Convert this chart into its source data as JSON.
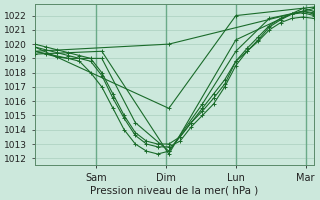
{
  "bg_color": "#cce8dc",
  "grid_color": "#aacfbe",
  "line_color": "#1a6b2a",
  "xlabel": "Pression niveau de la mer( hPa )",
  "ylim": [
    1011.5,
    1022.8
  ],
  "yticks": [
    1012,
    1013,
    1014,
    1015,
    1016,
    1017,
    1018,
    1019,
    1020,
    1021,
    1022
  ],
  "day_labels": [
    "Sam",
    "Dim",
    "Lun",
    "Mar"
  ],
  "day_positions": [
    0.22,
    0.47,
    0.72,
    0.97
  ],
  "xlim": [
    0.0,
    1.0
  ],
  "vline_color": "#6aaa88",
  "lines": [
    {
      "x": [
        0.0,
        0.04,
        0.08,
        0.12,
        0.16,
        0.2,
        0.24,
        0.28,
        0.32,
        0.36,
        0.4,
        0.44,
        0.48,
        0.52,
        0.56,
        0.6,
        0.64,
        0.68,
        0.72,
        0.76,
        0.8,
        0.84,
        0.88,
        0.92,
        0.96,
        1.0
      ],
      "y": [
        1019.5,
        1019.3,
        1019.1,
        1019.0,
        1018.8,
        1018.0,
        1017.0,
        1015.5,
        1014.0,
        1013.0,
        1012.5,
        1012.3,
        1012.5,
        1013.5,
        1014.5,
        1015.5,
        1016.5,
        1017.5,
        1018.8,
        1019.5,
        1020.2,
        1021.0,
        1021.5,
        1021.8,
        1021.9,
        1021.8
      ]
    },
    {
      "x": [
        0.0,
        0.04,
        0.08,
        0.12,
        0.16,
        0.2,
        0.24,
        0.28,
        0.32,
        0.36,
        0.4,
        0.44,
        0.48,
        0.52,
        0.56,
        0.6,
        0.64,
        0.68,
        0.72,
        0.76,
        0.8,
        0.84,
        0.88,
        0.92,
        0.96,
        1.0
      ],
      "y": [
        1020.0,
        1019.8,
        1019.6,
        1019.4,
        1019.2,
        1019.0,
        1018.0,
        1016.5,
        1015.0,
        1013.8,
        1013.2,
        1013.0,
        1013.0,
        1013.5,
        1014.5,
        1015.3,
        1016.2,
        1017.2,
        1018.8,
        1019.7,
        1020.5,
        1021.3,
        1021.8,
        1022.1,
        1022.2,
        1022.0
      ]
    },
    {
      "x": [
        0.0,
        0.04,
        0.08,
        0.12,
        0.16,
        0.2,
        0.24,
        0.28,
        0.32,
        0.36,
        0.4,
        0.44,
        0.48,
        0.52,
        0.56,
        0.6,
        0.64,
        0.68,
        0.72,
        0.76,
        0.8,
        0.84,
        0.88,
        0.92,
        0.96,
        1.0
      ],
      "y": [
        1019.8,
        1019.6,
        1019.4,
        1019.2,
        1019.0,
        1018.8,
        1017.8,
        1016.2,
        1014.8,
        1013.6,
        1013.0,
        1012.8,
        1012.8,
        1013.2,
        1014.2,
        1015.0,
        1015.8,
        1017.0,
        1018.5,
        1019.5,
        1020.3,
        1021.2,
        1021.7,
        1022.1,
        1022.3,
        1022.1
      ]
    },
    {
      "x": [
        0.0,
        0.12,
        0.24,
        0.36,
        0.48,
        0.6,
        0.72,
        0.84,
        0.96,
        1.0
      ],
      "y": [
        1019.5,
        1019.0,
        1019.0,
        1014.5,
        1012.5,
        1015.8,
        1019.5,
        1021.8,
        1022.3,
        1022.2
      ]
    },
    {
      "x": [
        0.0,
        0.24,
        0.48,
        0.72,
        0.96,
        1.0
      ],
      "y": [
        1019.3,
        1019.5,
        1012.3,
        1020.3,
        1022.5,
        1022.3
      ]
    },
    {
      "x": [
        0.0,
        0.48,
        0.72,
        1.0
      ],
      "y": [
        1019.8,
        1015.5,
        1022.0,
        1022.6
      ]
    },
    {
      "x": [
        0.0,
        0.48,
        1.0
      ],
      "y": [
        1019.5,
        1020.0,
        1022.5
      ]
    }
  ]
}
